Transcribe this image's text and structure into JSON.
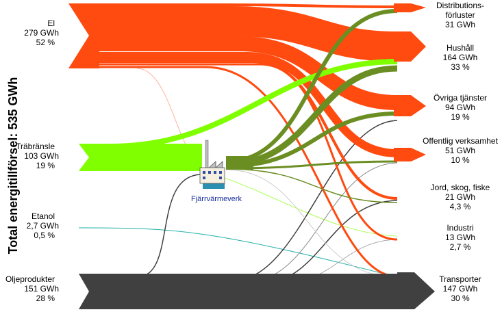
{
  "title": "Total energitillförsel: 535 GWh",
  "plant": "Fjärrvärmeverk",
  "sources": [
    {
      "name": "El",
      "amount": "279 GWh",
      "share": "52 %"
    },
    {
      "name": "Träbränsle",
      "amount": "103 GWh",
      "share": "19 %"
    },
    {
      "name": "Etanol",
      "amount": "2,7 GWh",
      "share": "0,5 %"
    },
    {
      "name": "Oljeprodukter",
      "amount": "151 GWh",
      "share": "28 %"
    }
  ],
  "targets": [
    {
      "name": [
        "Distributions-",
        "förluster"
      ],
      "amount": "31 GWh"
    },
    {
      "name": [
        "Hushåll"
      ],
      "amount": "164 GWh",
      "share": "33 %"
    },
    {
      "name": [
        "Övriga tjänster"
      ],
      "amount": "94 GWh",
      "share": "19 %"
    },
    {
      "name": [
        "Offentlig verksamhet"
      ],
      "amount": "51 GWh",
      "share": "10 %"
    },
    {
      "name": [
        "Jord, skog, fiske"
      ],
      "amount": "21 GWh",
      "share": "4,3 %"
    },
    {
      "name": [
        "Industri"
      ],
      "amount": "13 GWh",
      "share": "2,7 %"
    },
    {
      "name": [
        "Transporter"
      ],
      "amount": "147 GWh",
      "share": "30 %"
    }
  ]
}
